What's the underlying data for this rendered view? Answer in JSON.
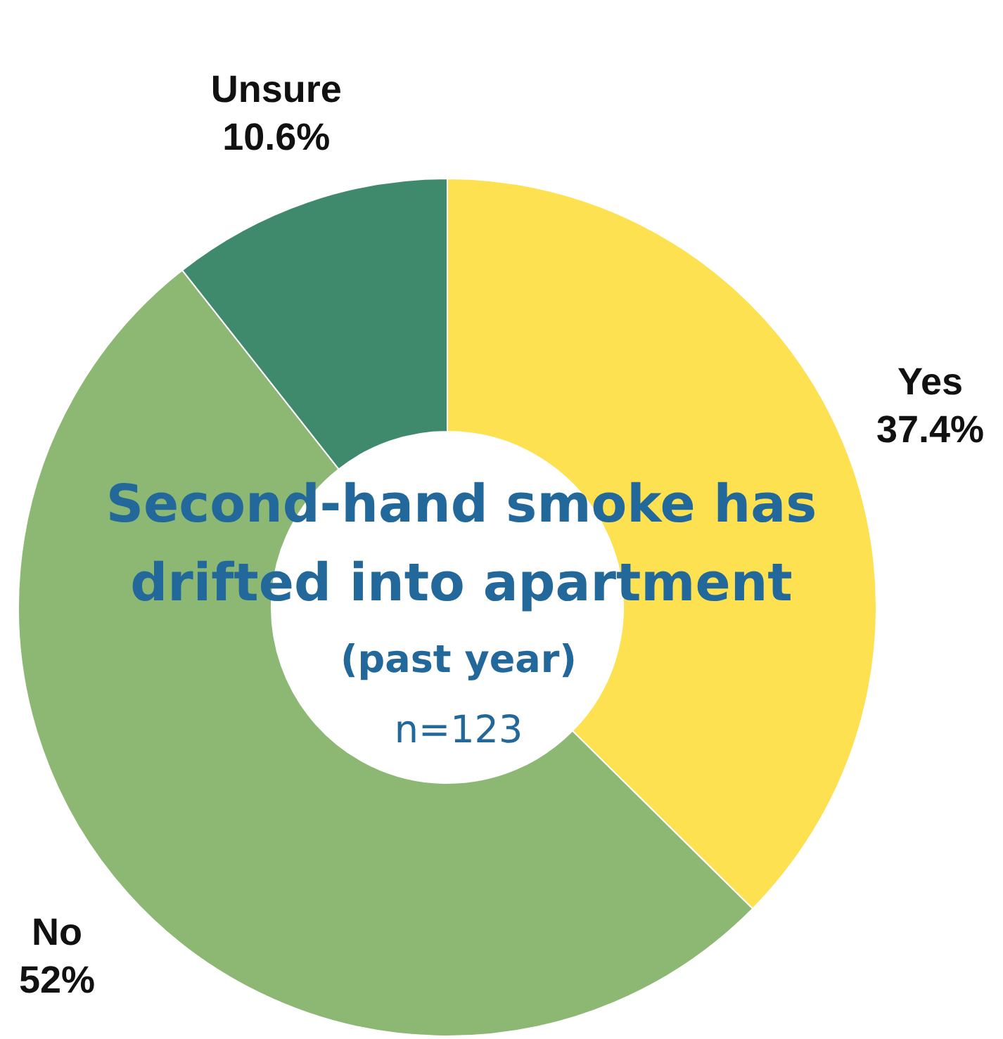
{
  "chart_data": {
    "type": "donut",
    "title": "Second-hand smoke has drifted into apartment",
    "subtitle": "(past year)",
    "annotations": [
      "n=123"
    ],
    "categories": [
      "Yes",
      "No",
      "Unsure"
    ],
    "values": [
      37.4,
      52,
      10.6
    ],
    "value_labels": [
      "37.4%",
      "52%",
      "10.6%"
    ],
    "colors": [
      "#fde150",
      "#8db873",
      "#3f8a6c"
    ]
  }
}
